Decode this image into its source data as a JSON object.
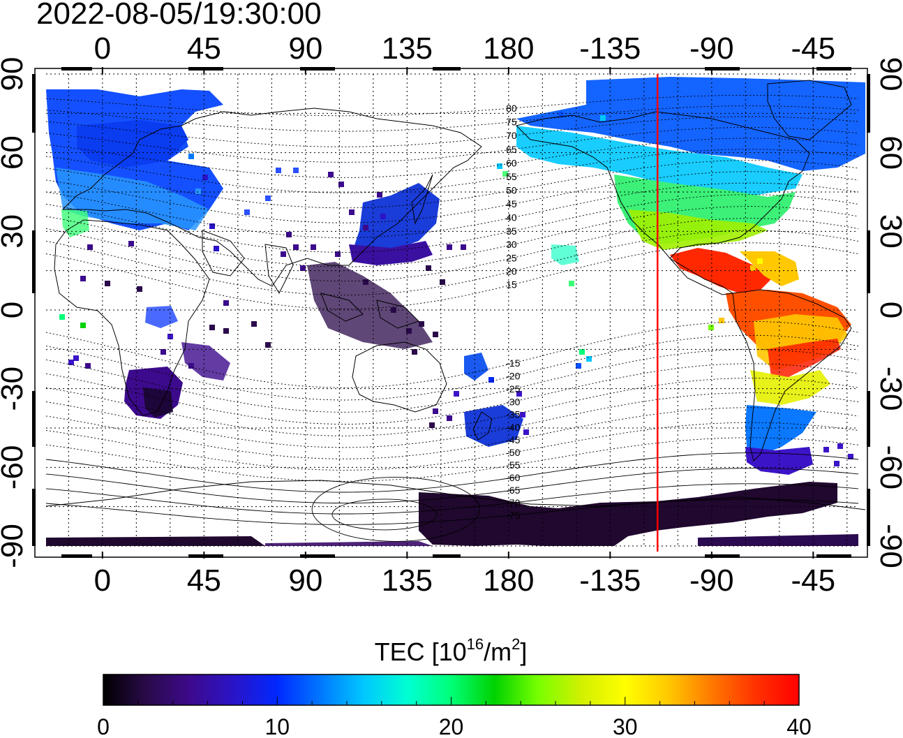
{
  "header": {
    "timestamp": "2022-08-05/19:30:00"
  },
  "map": {
    "lon_range": [
      -25,
      335
    ],
    "lat_range": [
      -90,
      90
    ],
    "top_lon_ticks": [
      "0",
      "45",
      "90",
      "135",
      "180",
      "-135",
      "-90",
      "-45"
    ],
    "bottom_lon_ticks": [
      "0",
      "45",
      "90",
      "135",
      "180",
      "-135",
      "-90",
      "-45"
    ],
    "lat_ticks": [
      "90",
      "60",
      "30",
      "0",
      "-30",
      "-60",
      "-90"
    ],
    "lon_tick_values": [
      0,
      45,
      90,
      135,
      180,
      225,
      270,
      315
    ],
    "lat_tick_values": [
      90,
      60,
      30,
      0,
      -30,
      -60,
      -90
    ],
    "magnetic_latitude_labels": [
      "80",
      "75",
      "70",
      "65",
      "60",
      "55",
      "50",
      "45",
      "40",
      "35",
      "30",
      "25",
      "20",
      "15",
      "-15",
      "-20",
      "-25",
      "-30",
      "-35",
      "-40",
      "-45",
      "-50",
      "-55",
      "-60",
      "-65",
      "-70",
      "-75"
    ],
    "magnetic_latitude_values": [
      80,
      75,
      70,
      65,
      60,
      55,
      50,
      45,
      40,
      35,
      30,
      25,
      20,
      15,
      -15,
      -20,
      -25,
      -30,
      -35,
      -40,
      -45,
      -50,
      -55,
      -60,
      -65,
      -70,
      -75
    ],
    "terminator_line": {
      "lon": 246,
      "color": "#ff0000"
    }
  },
  "colorbar": {
    "title_main": "TEC  [10",
    "title_sup1": "16",
    "title_mid": "/m",
    "title_sup2": "2",
    "title_end": "]",
    "min": 0,
    "max": 40,
    "tick_labels": [
      "0",
      "10",
      "20",
      "30",
      "40"
    ],
    "tick_values": [
      0,
      10,
      20,
      30,
      40
    ],
    "colors": [
      "#000000",
      "#2a0a4a",
      "#3c0a8c",
      "#2a14c8",
      "#0028ff",
      "#0078ff",
      "#00c8ff",
      "#00ffd2",
      "#00ff78",
      "#00d200",
      "#78ff00",
      "#d2f000",
      "#ffff00",
      "#ffc800",
      "#ff7800",
      "#ff3200",
      "#ff0000"
    ]
  }
}
